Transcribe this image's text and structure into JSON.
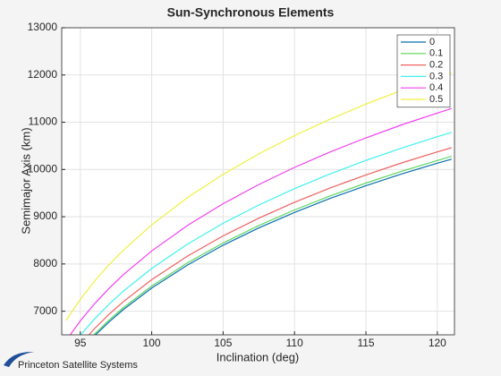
{
  "chart_data": {
    "type": "line",
    "title": "Sun-Synchronous Elements",
    "xlabel": "Inclination (deg)",
    "ylabel": "Semimajor Axis (km)",
    "x": [
      94,
      95,
      96,
      97,
      98,
      100,
      102.5,
      105,
      107.5,
      110,
      112.5,
      115,
      117.5,
      120,
      121
    ],
    "series": [
      {
        "name": "0",
        "color": "#0a6fb0",
        "values": [
          5772,
          6151,
          6479,
          6770,
          7031,
          7490,
          7977,
          8396,
          8763,
          9091,
          9388,
          9657,
          9905,
          10132,
          10219
        ]
      },
      {
        "name": "0.1",
        "color": "#5ed65e",
        "values": [
          5805,
          6186,
          6516,
          6809,
          7071,
          7533,
          8023,
          8444,
          8813,
          9143,
          9442,
          9713,
          9962,
          10190,
          10278
        ]
      },
      {
        "name": "0.2",
        "color": "#f06060",
        "values": [
          5908,
          6296,
          6632,
          6930,
          7197,
          7667,
          8165,
          8594,
          8970,
          9306,
          9610,
          9885,
          10139,
          10371,
          10460
        ]
      },
      {
        "name": "0.3",
        "color": "#40f0f0",
        "values": [
          6092,
          6492,
          6838,
          7145,
          7421,
          7905,
          8419,
          8861,
          9248,
          9595,
          9908,
          10192,
          10454,
          10693,
          10785
        ]
      },
      {
        "name": "0.4",
        "color": "#f040f0",
        "values": [
          6377,
          6796,
          7158,
          7479,
          7768,
          8275,
          8813,
          9276,
          9681,
          10044,
          10372,
          10669,
          10943,
          11194,
          11290
        ]
      },
      {
        "name": "0.5",
        "color": "#f0f040",
        "values": [
          6803,
          7250,
          7637,
          7980,
          8287,
          8828,
          9403,
          9896,
          10329,
          10716,
          11066,
          11383,
          11675,
          11943,
          12045
        ]
      }
    ],
    "xlim": [
      93.7,
      121.2
    ],
    "ylim": [
      6500,
      13000
    ],
    "xticks": [
      95,
      100,
      105,
      110,
      115,
      120
    ],
    "yticks": [
      7000,
      8000,
      9000,
      10000,
      11000,
      12000,
      13000
    ],
    "grid": true,
    "legend": "northeast"
  },
  "logo": {
    "text": "Princeton Satellite Systems"
  }
}
